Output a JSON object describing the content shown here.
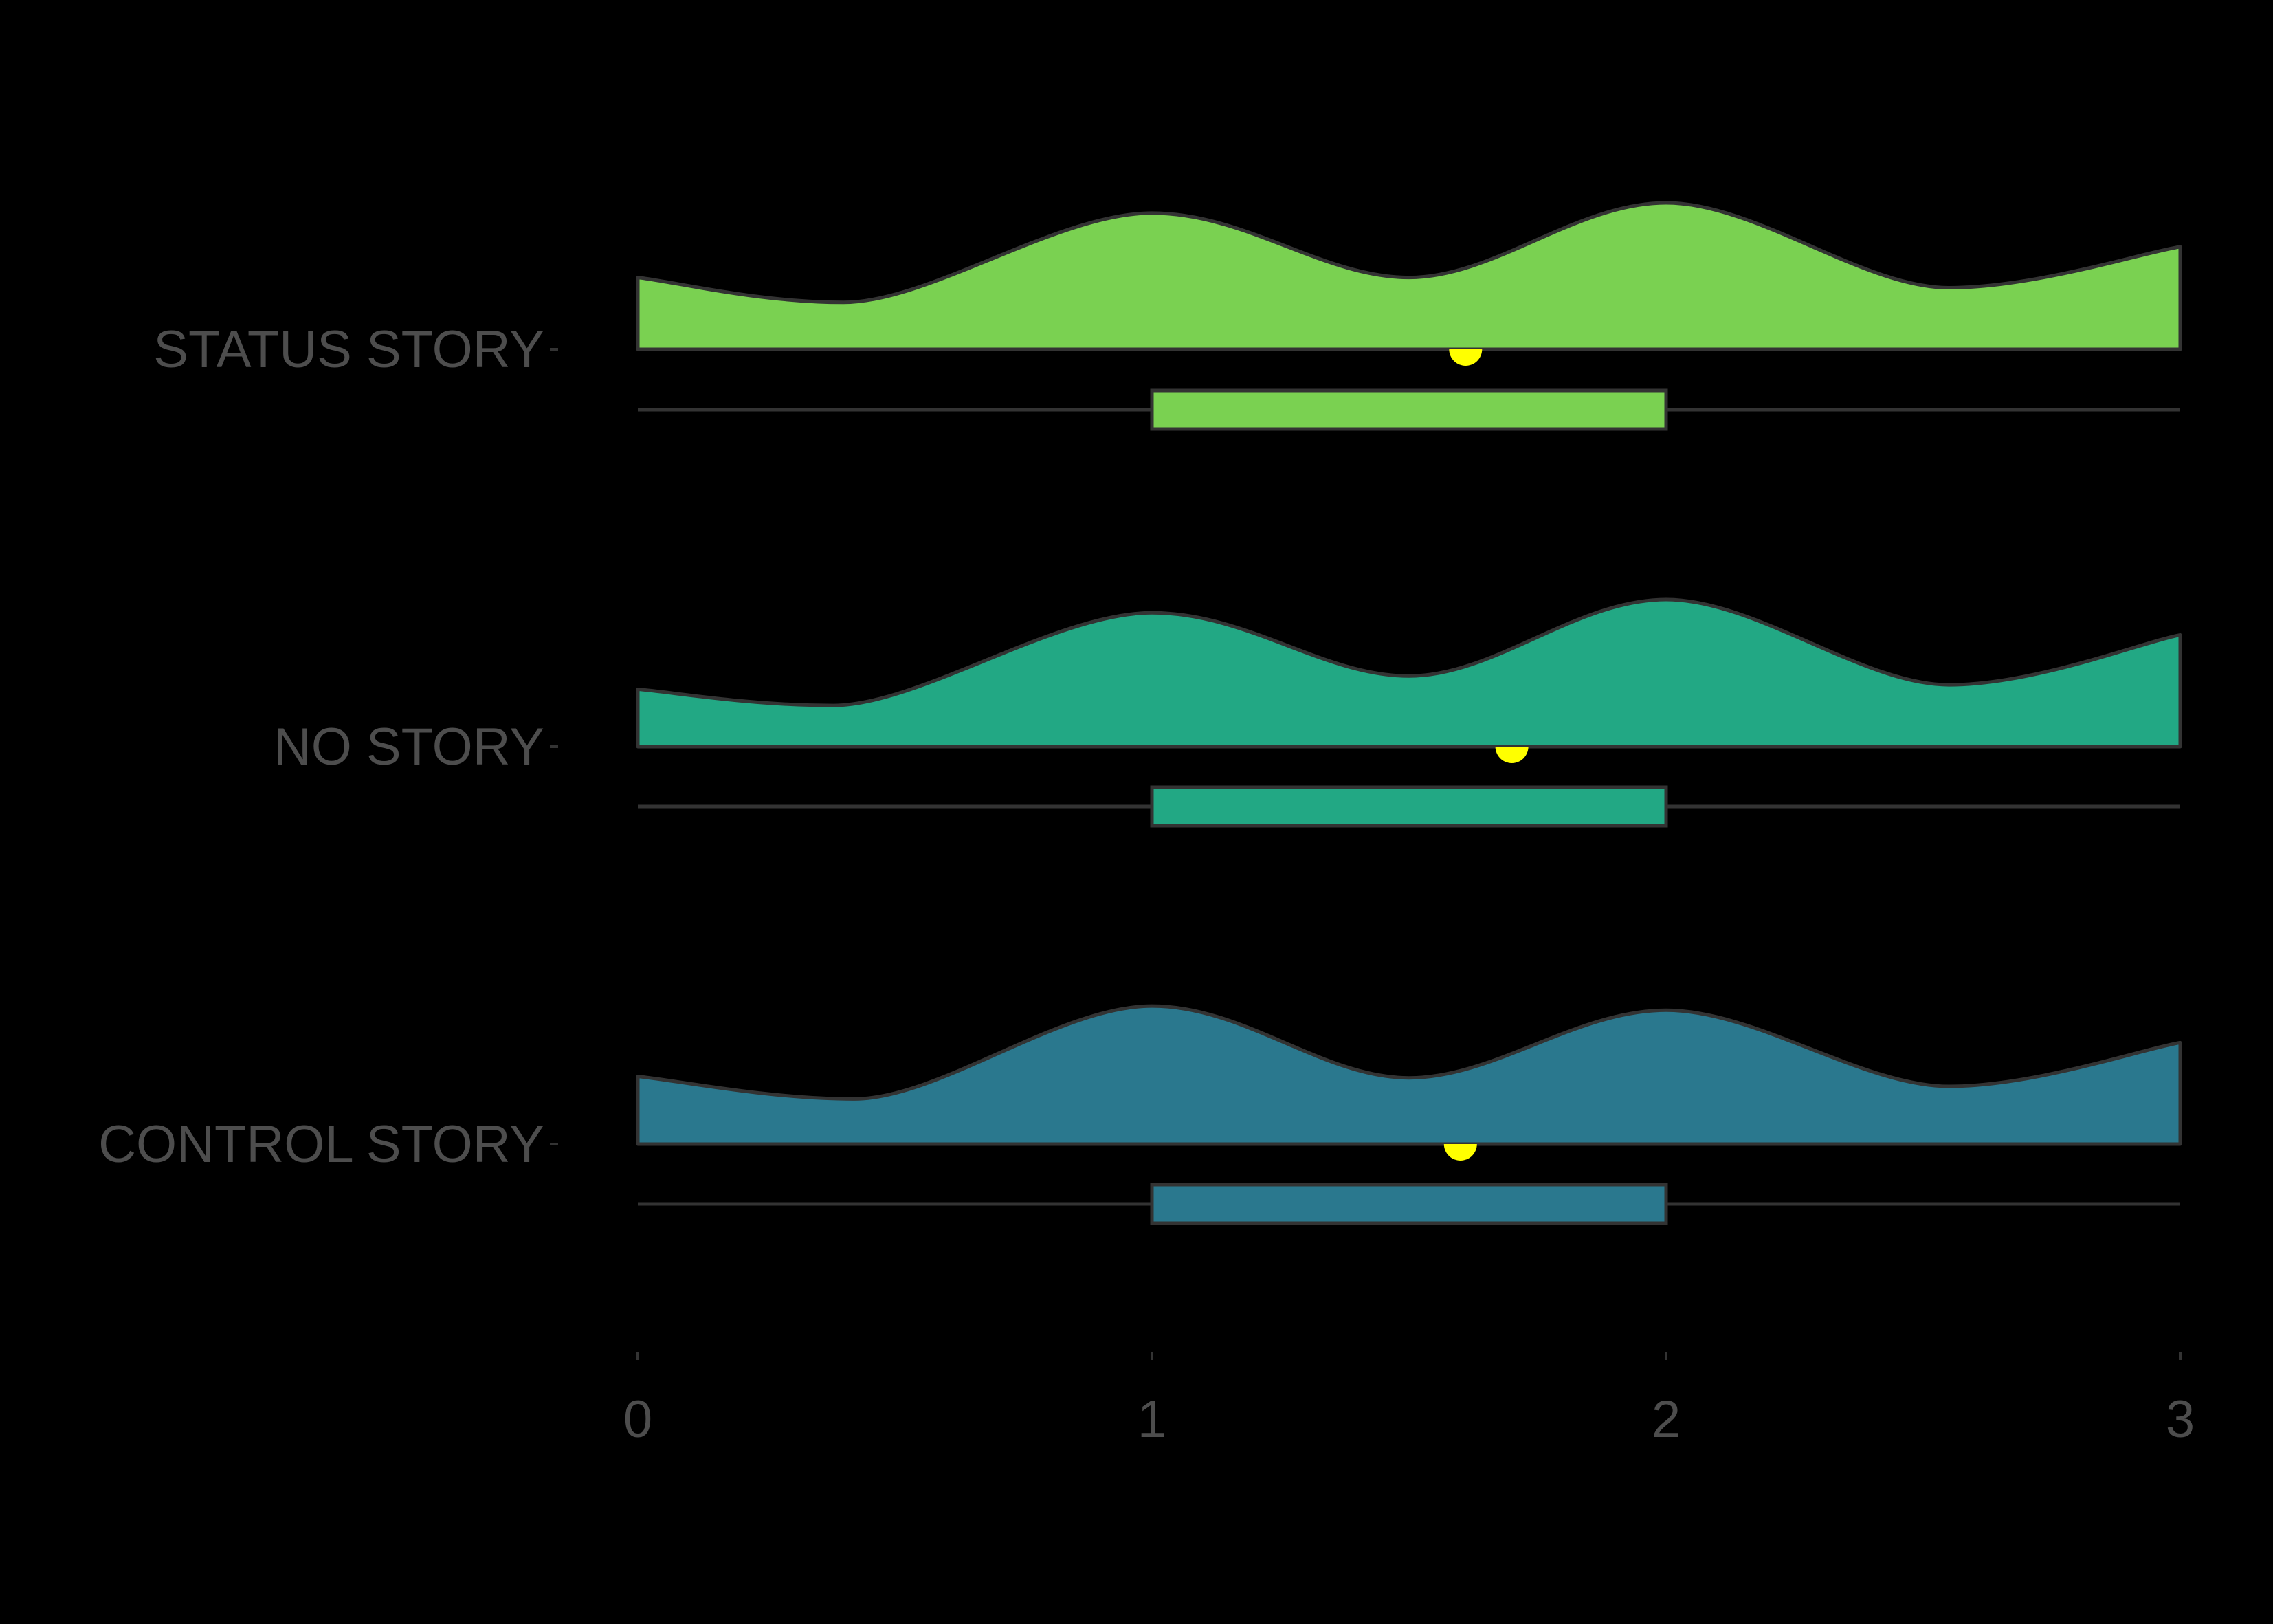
{
  "chart_data": {
    "type": "raincloud",
    "title": "",
    "xlabel": "",
    "ylabel": "",
    "xlim": [
      0,
      3
    ],
    "x_ticks": [
      "0",
      "1",
      "2",
      "3"
    ],
    "background": "#000000",
    "outline_color": "#333333",
    "text_color": "#4d4d4d",
    "mean_marker_color": "#ffff00",
    "grid": false,
    "legend": "none",
    "categories": [
      "STATUS STORY",
      "NO STORY",
      "CONTROL STORY"
    ],
    "series": [
      {
        "category": "STATUS STORY",
        "color": "#7ad151",
        "density": {
          "x": [
            0,
            0.4,
            1.0,
            1.5,
            2.0,
            2.55,
            3.0
          ],
          "y": [
            0.49,
            0.32,
            0.93,
            0.49,
            1.0,
            0.42,
            0.7
          ]
        },
        "box": {
          "q1": 1,
          "median": 1,
          "q3": 2,
          "whisker_low": 0,
          "whisker_high": 3
        },
        "mean": 1.61
      },
      {
        "category": "NO STORY",
        "color": "#22a884",
        "density": {
          "x": [
            0,
            0.38,
            1.0,
            1.5,
            2.0,
            2.55,
            3.0
          ],
          "y": [
            0.39,
            0.28,
            0.91,
            0.48,
            1.0,
            0.42,
            0.76
          ]
        },
        "box": {
          "q1": 1,
          "median": 1,
          "q3": 2,
          "whisker_low": 0,
          "whisker_high": 3
        },
        "mean": 1.7
      },
      {
        "category": "CONTROL STORY",
        "color": "#2a788e",
        "density": {
          "x": [
            0,
            0.42,
            1.0,
            1.5,
            2.0,
            2.55,
            3.0
          ],
          "y": [
            0.48,
            0.32,
            0.98,
            0.47,
            0.95,
            0.41,
            0.72
          ]
        },
        "box": {
          "q1": 1,
          "median": 1,
          "q3": 2,
          "whisker_low": 0,
          "whisker_high": 3
        },
        "mean": 1.6
      }
    ]
  }
}
